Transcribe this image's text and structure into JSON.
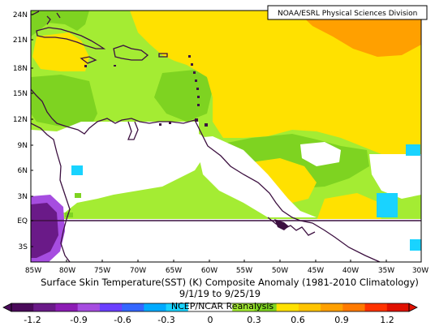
{
  "credit": "NOAA/ESRL Physical Sciences Division",
  "title_line1": "Surface Skin Temperature(SST) (K) Composite Anomaly (1981-2010 Climatology)",
  "title_line2": "9/1/19  to 9/25/19",
  "colorbar_source": "NCEP/NCAR Reanalysis",
  "lat_ticks": [
    "24N",
    "21N",
    "18N",
    "15N",
    "12N",
    "9N",
    "6N",
    "3N",
    "EQ",
    "3S"
  ],
  "lon_ticks": [
    "85W",
    "80W",
    "75W",
    "70W",
    "65W",
    "60W",
    "55W",
    "50W",
    "45W",
    "40W",
    "35W",
    "30W"
  ],
  "colorbar_labels": [
    "-1.2",
    "-0.9",
    "-0.6",
    "-0.3",
    "0",
    "0.3",
    "0.6",
    "0.9",
    "1.2"
  ],
  "colorbar_colors": [
    "#4a0a5a",
    "#6a1a88",
    "#8c1cb4",
    "#a64de0",
    "#6b3fff",
    "#3466ff",
    "#00aaff",
    "#19d3ff",
    "#ffffff",
    "#ffffff",
    "#a4ec33",
    "#7ed321",
    "#ffe100",
    "#ffc400",
    "#ffa000",
    "#ff7a00",
    "#ff3300",
    "#e01000"
  ],
  "colors": {
    "orange": "#ffa000",
    "yellow": "#ffe100",
    "lightgreen": "#a4ec33",
    "green": "#7ed321",
    "cyan": "#19d3ff",
    "purple": "#6a1a88",
    "land_outline": "#3c1040",
    "equator_line": "#3c1040"
  }
}
